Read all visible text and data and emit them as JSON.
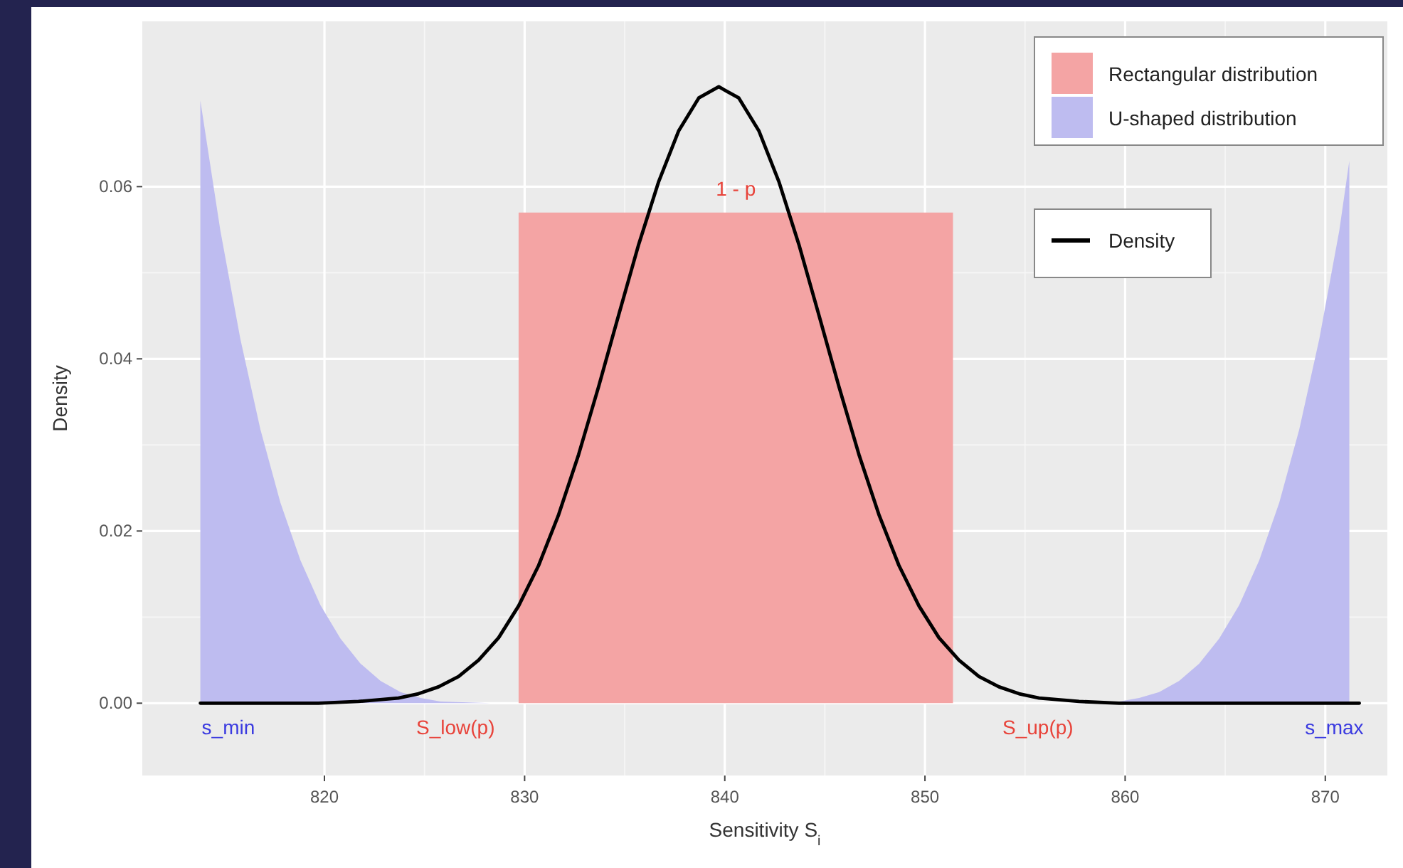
{
  "chart_data": {
    "type": "line",
    "xlabel": "Sensitivity  S$_{i}$",
    "ylabel": "Density",
    "xlim": [
      810.9,
      873.1
    ],
    "ylim": [
      -0.0084,
      0.0792
    ],
    "xticks": [
      820,
      830,
      840,
      850,
      860,
      870
    ],
    "yticks": [
      {
        "value": 0,
        "label": "0.00"
      },
      {
        "value": 0.02,
        "label": "0.02"
      },
      {
        "value": 0.04,
        "label": "0.04"
      },
      {
        "value": 0.06,
        "label": "0.06"
      }
    ],
    "grid": true,
    "legend": "top right",
    "series": [
      {
        "name": "Rectangular distribution",
        "type": "area",
        "color": "#f4a4a4",
        "x": [
          829.7,
          851.4
        ],
        "values": [
          0.057,
          0.057
        ]
      },
      {
        "name": "U-shaped distribution",
        "type": "area",
        "color": "#bebcf0",
        "x": [
          813.8,
          814.8,
          815.8,
          816.8,
          817.8,
          818.8,
          819.8,
          820.8,
          821.8,
          822.8,
          823.8,
          824.8,
          825.8,
          828.3,
          843,
          857.2,
          859.7,
          860.7,
          861.7,
          862.7,
          863.7,
          864.7,
          865.7,
          866.7,
          867.7,
          868.7,
          869.7,
          870.7,
          871.2
        ],
        "values": [
          0.07,
          0.0549,
          0.0423,
          0.0318,
          0.0233,
          0.0166,
          0.0114,
          0.0075,
          0.0046,
          0.0026,
          0.0013,
          0.0006,
          0.0002,
          0,
          null,
          0,
          0.0002,
          0.0006,
          0.0013,
          0.0026,
          0.0046,
          0.0075,
          0.0114,
          0.0166,
          0.0233,
          0.0318,
          0.0423,
          0.0549,
          0.063
        ]
      },
      {
        "name": "Density",
        "color": "#000000",
        "x": [
          813.8,
          819.7,
          821.7,
          823.7,
          824.7,
          825.7,
          826.7,
          827.7,
          828.7,
          829.7,
          830.7,
          831.7,
          832.7,
          833.7,
          834.7,
          835.7,
          836.7,
          837.7,
          838.7,
          839.7,
          840.7,
          841.7,
          842.7,
          843.7,
          844.7,
          845.7,
          846.7,
          847.7,
          848.7,
          849.7,
          850.7,
          851.7,
          852.7,
          853.7,
          854.7,
          855.7,
          857.7,
          859.7,
          871.7
        ],
        "values": [
          0,
          0,
          0.0002,
          0.0006,
          0.0011,
          0.0019,
          0.0031,
          0.005,
          0.0076,
          0.0113,
          0.016,
          0.0219,
          0.0289,
          0.0368,
          0.0451,
          0.0533,
          0.0606,
          0.0665,
          0.0703,
          0.0716,
          0.0703,
          0.0665,
          0.0606,
          0.0533,
          0.0451,
          0.0368,
          0.0289,
          0.0219,
          0.016,
          0.0113,
          0.0076,
          0.005,
          0.0031,
          0.0019,
          0.0011,
          0.0006,
          0.0002,
          0,
          0
        ]
      }
    ],
    "annotations": [
      "1 - p",
      {
        "text": "s_min",
        "x": 813.8,
        "y": 0
      },
      {
        "text": "S_low(p)",
        "x": 828.3,
        "y": 0
      },
      {
        "text": "S_up(p)",
        "x": 857.2,
        "y": 0
      },
      {
        "text": "s_max",
        "x": 871.7,
        "y": 0
      }
    ]
  }
}
